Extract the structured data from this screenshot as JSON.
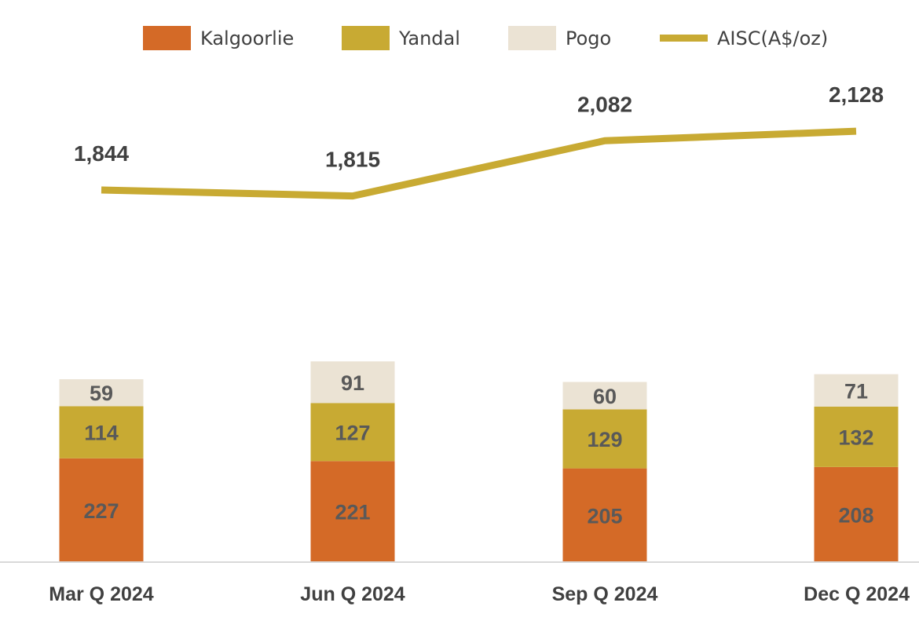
{
  "chart_data": {
    "type": "bar",
    "stacked": true,
    "categories": [
      "Mar Q 2024",
      "Jun Q 2024",
      "Sep Q 2024",
      "Dec Q 2024"
    ],
    "series": [
      {
        "name": "Kalgoorlie",
        "color": "#D46A27",
        "values": [
          227,
          221,
          205,
          208
        ],
        "labels": [
          "227",
          "221",
          "205",
          "208"
        ]
      },
      {
        "name": "Yandal",
        "color": "#C8AA33",
        "values": [
          114,
          127,
          129,
          132
        ],
        "labels": [
          "114",
          "127",
          "129",
          "132"
        ]
      },
      {
        "name": "Pogo",
        "color": "#EBE3D4",
        "values": [
          59,
          91,
          60,
          71
        ],
        "labels": [
          "59",
          "91",
          "60",
          "71"
        ]
      }
    ],
    "line_series": {
      "name": "AISC(A$/oz)",
      "color": "#C8AA33",
      "values": [
        1844,
        1815,
        2082,
        2128
      ],
      "labels": [
        "1,844",
        "1,815",
        "2,082",
        "2,128"
      ]
    },
    "legend_position": "top",
    "grid": false,
    "title": "",
    "xlabel": "",
    "ylabel": ""
  }
}
